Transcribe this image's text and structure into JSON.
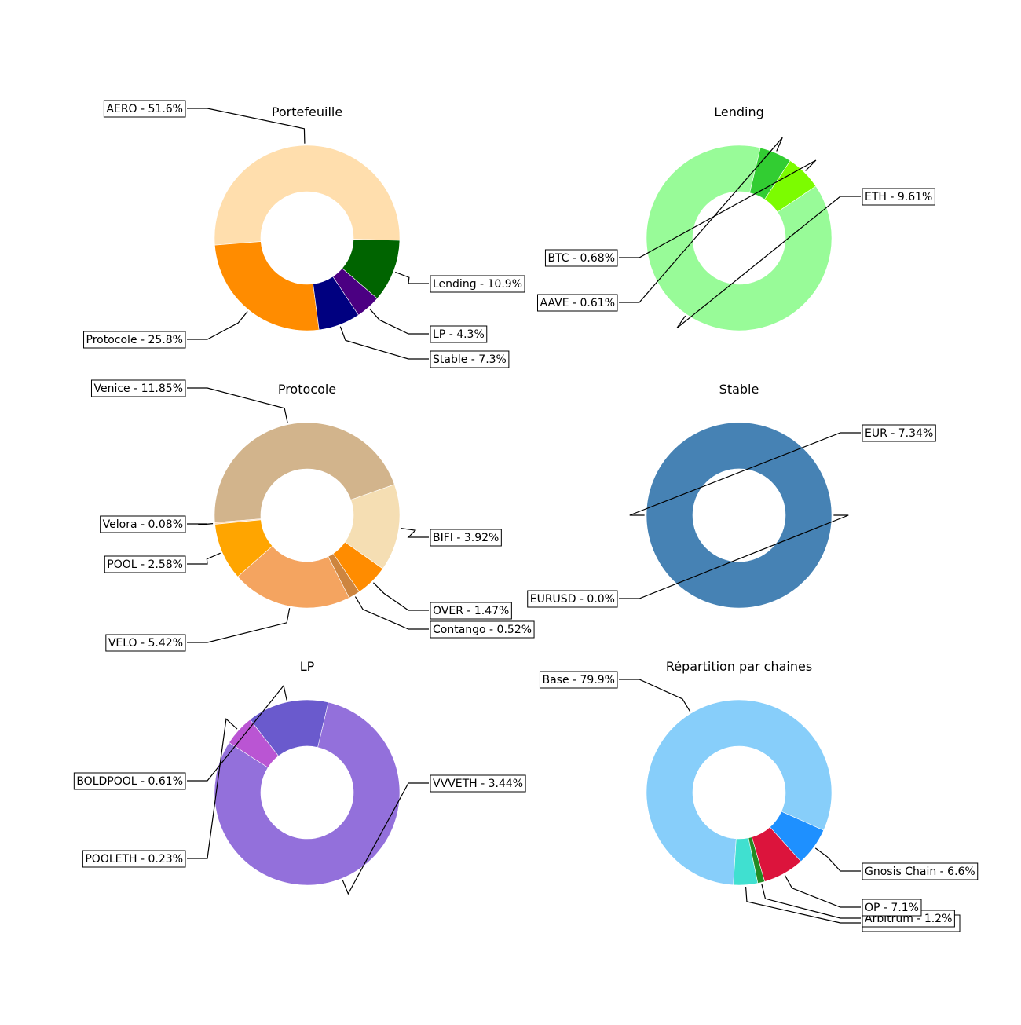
{
  "chart_data": [
    {
      "type": "pie",
      "title": "Portefeuille",
      "slices": [
        {
          "label": "AERO - 51.6%",
          "value": 51.6,
          "color": "#FFDEAD"
        },
        {
          "label": "Protocole - 25.8%",
          "value": 25.8,
          "color": "#FF8C00"
        },
        {
          "label": "Stable - 7.3%",
          "value": 7.3,
          "color": "#000080"
        },
        {
          "label": "LP - 4.3%",
          "value": 4.3,
          "color": "#4B0082"
        },
        {
          "label": "Lending - 10.9%",
          "value": 10.9,
          "color": "#006400"
        }
      ]
    },
    {
      "type": "pie",
      "title": "Lending",
      "slices": [
        {
          "label": "ETH - 9.61%",
          "value": 9.61,
          "color": "#98FB98"
        },
        {
          "label": "BTC - 0.68%",
          "value": 0.68,
          "color": "#7CFC00"
        },
        {
          "label": "AAVE - 0.61%",
          "value": 0.61,
          "color": "#32CD32"
        }
      ]
    },
    {
      "type": "pie",
      "title": "Protocole",
      "slices": [
        {
          "label": "Venice - 11.85%",
          "value": 11.85,
          "color": "#D2B48C"
        },
        {
          "label": "Velora - 0.08%",
          "value": 0.08,
          "color": "#FFDAB9"
        },
        {
          "label": "POOL - 2.58%",
          "value": 2.58,
          "color": "#FFA500"
        },
        {
          "label": "VELO - 5.42%",
          "value": 5.42,
          "color": "#F4A460"
        },
        {
          "label": "Contango - 0.52%",
          "value": 0.52,
          "color": "#CD853F"
        },
        {
          "label": "OVER - 1.47%",
          "value": 1.47,
          "color": "#FF8C00"
        },
        {
          "label": "BIFI - 3.92%",
          "value": 3.92,
          "color": "#F5DEB3"
        }
      ]
    },
    {
      "type": "pie",
      "title": "Stable",
      "slices": [
        {
          "label": "EUR - 7.34%",
          "value": 7.34,
          "color": "#4682B4"
        },
        {
          "label": "EURUSD - 0.0%",
          "value": 0.0,
          "color": "#4682B4"
        }
      ]
    },
    {
      "type": "pie",
      "title": "LP",
      "slices": [
        {
          "label": "VVVETH - 3.44%",
          "value": 3.44,
          "color": "#9370DB"
        },
        {
          "label": "BOLDPOOL - 0.61%",
          "value": 0.61,
          "color": "#6A5ACD"
        },
        {
          "label": "POOLETH - 0.23%",
          "value": 0.23,
          "color": "#BA55D3"
        }
      ]
    },
    {
      "type": "pie",
      "title": "Répartition par chaines",
      "slices": [
        {
          "label": "Base - 79.9%",
          "value": 79.9,
          "color": "#87CEFA"
        },
        {
          "label": "",
          "value": 4.2,
          "color": "#40E0D0"
        },
        {
          "label": "Arbitrum - 1.2%",
          "value": 1.2,
          "color": "#228B22"
        },
        {
          "label": "OP - 7.1%",
          "value": 7.1,
          "color": "#DC143C"
        },
        {
          "label": "Gnosis Chain - 6.6%",
          "value": 6.6,
          "color": "#1E90FF"
        }
      ]
    }
  ]
}
